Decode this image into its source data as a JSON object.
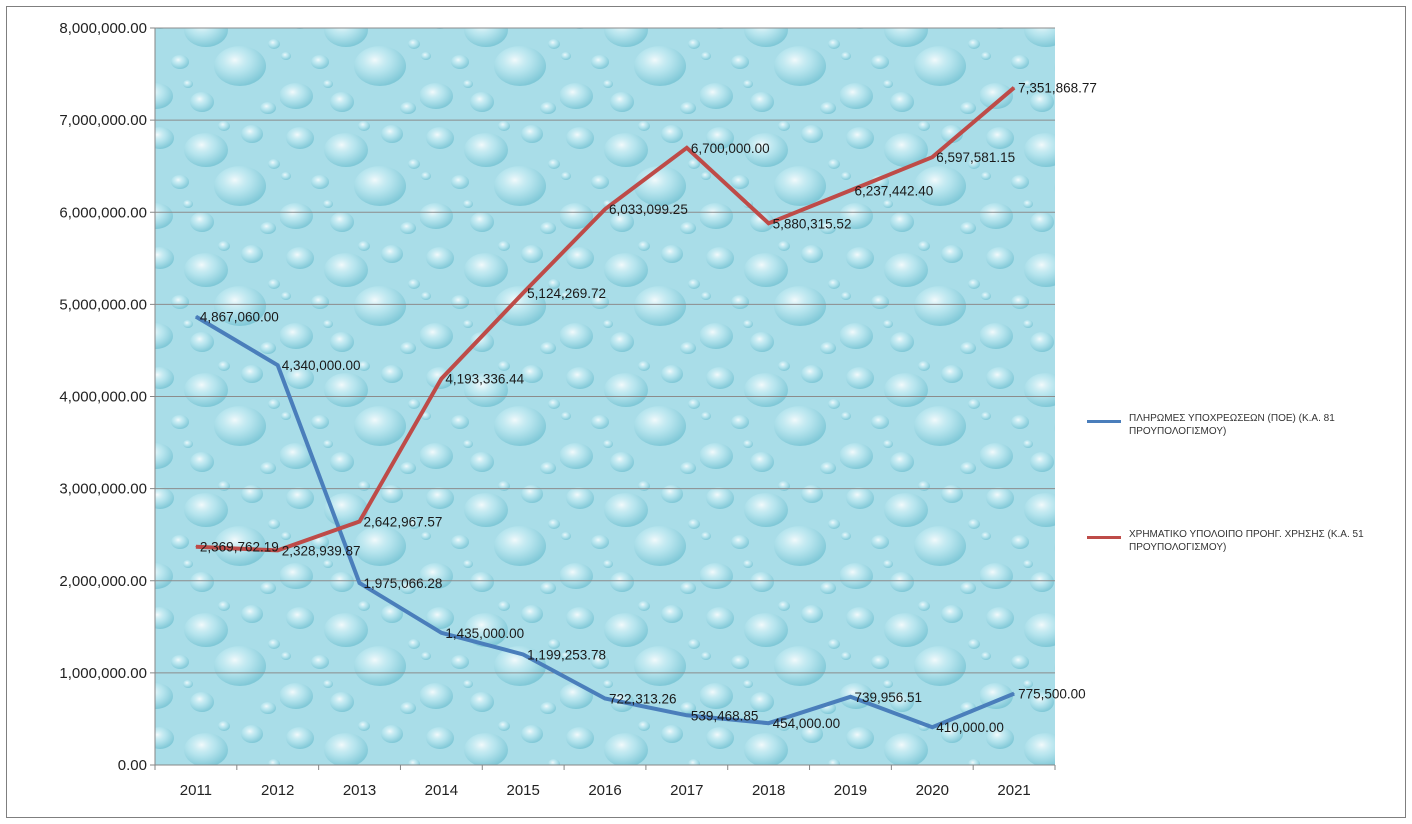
{
  "chart_data": {
    "type": "line",
    "x": [
      "2011",
      "2012",
      "2013",
      "2014",
      "2015",
      "2016",
      "2017",
      "2018",
      "2019",
      "2020",
      "2021"
    ],
    "ylim": [
      0,
      8000000
    ],
    "yticks": [
      {
        "value": 0,
        "label": "0.00"
      },
      {
        "value": 1000000,
        "label": "1,000,000.00"
      },
      {
        "value": 2000000,
        "label": "2,000,000.00"
      },
      {
        "value": 3000000,
        "label": "3,000,000.00"
      },
      {
        "value": 4000000,
        "label": "4,000,000.00"
      },
      {
        "value": 5000000,
        "label": "5,000,000.00"
      },
      {
        "value": 6000000,
        "label": "6,000,000.00"
      },
      {
        "value": 7000000,
        "label": "7,000,000.00"
      },
      {
        "value": 8000000,
        "label": "8,000,000.00"
      }
    ],
    "grid": true,
    "legend_position": "right",
    "series": [
      {
        "name": "ΠΛΗΡΩΜΕΣ ΥΠΟΧΡΕΩΣΕΩΝ (ΠΟΕ) (Κ.Α. 81 ΠΡΟΥΠΟΛΟΓΙΣΜΟΥ)",
        "color": "#4a7ebb",
        "values": [
          4867060.0,
          4340000.0,
          1975066.28,
          1435000.0,
          1199253.78,
          722313.26,
          539468.85,
          454000.0,
          739956.51,
          410000.0,
          775500.0
        ],
        "labels": [
          "4,867,060.00",
          "4,340,000.00",
          "1,975,066.28",
          "1,435,000.00",
          "1,199,253.78",
          "722,313.26",
          "539,468.85",
          "454,000.00",
          "739,956.51",
          "410,000.00",
          "775,500.00"
        ]
      },
      {
        "name": "ΧΡΗΜΑΤΙΚΟ ΥΠΟΛΟΙΠΟ ΠΡΟΗΓ. ΧΡΗΣΗΣ (Κ.Α. 51 ΠΡΟΥΠΟΛΟΓΙΣΜΟΥ)",
        "color": "#be4b48",
        "values": [
          2369762.19,
          2328939.87,
          2642967.57,
          4193336.44,
          5124269.72,
          6033099.25,
          6700000.0,
          5880315.52,
          6237442.4,
          6597581.15,
          7351868.77
        ],
        "labels": [
          "2,369,762.19",
          "2,328,939.87",
          "2,642,967.57",
          "4,193,336.44",
          "5,124,269.72",
          "6,033,099.25",
          "6,700,000.00",
          "5,880,315.52",
          "6,237,442.40",
          "6,597,581.15",
          "7,351,868.77"
        ]
      }
    ]
  }
}
